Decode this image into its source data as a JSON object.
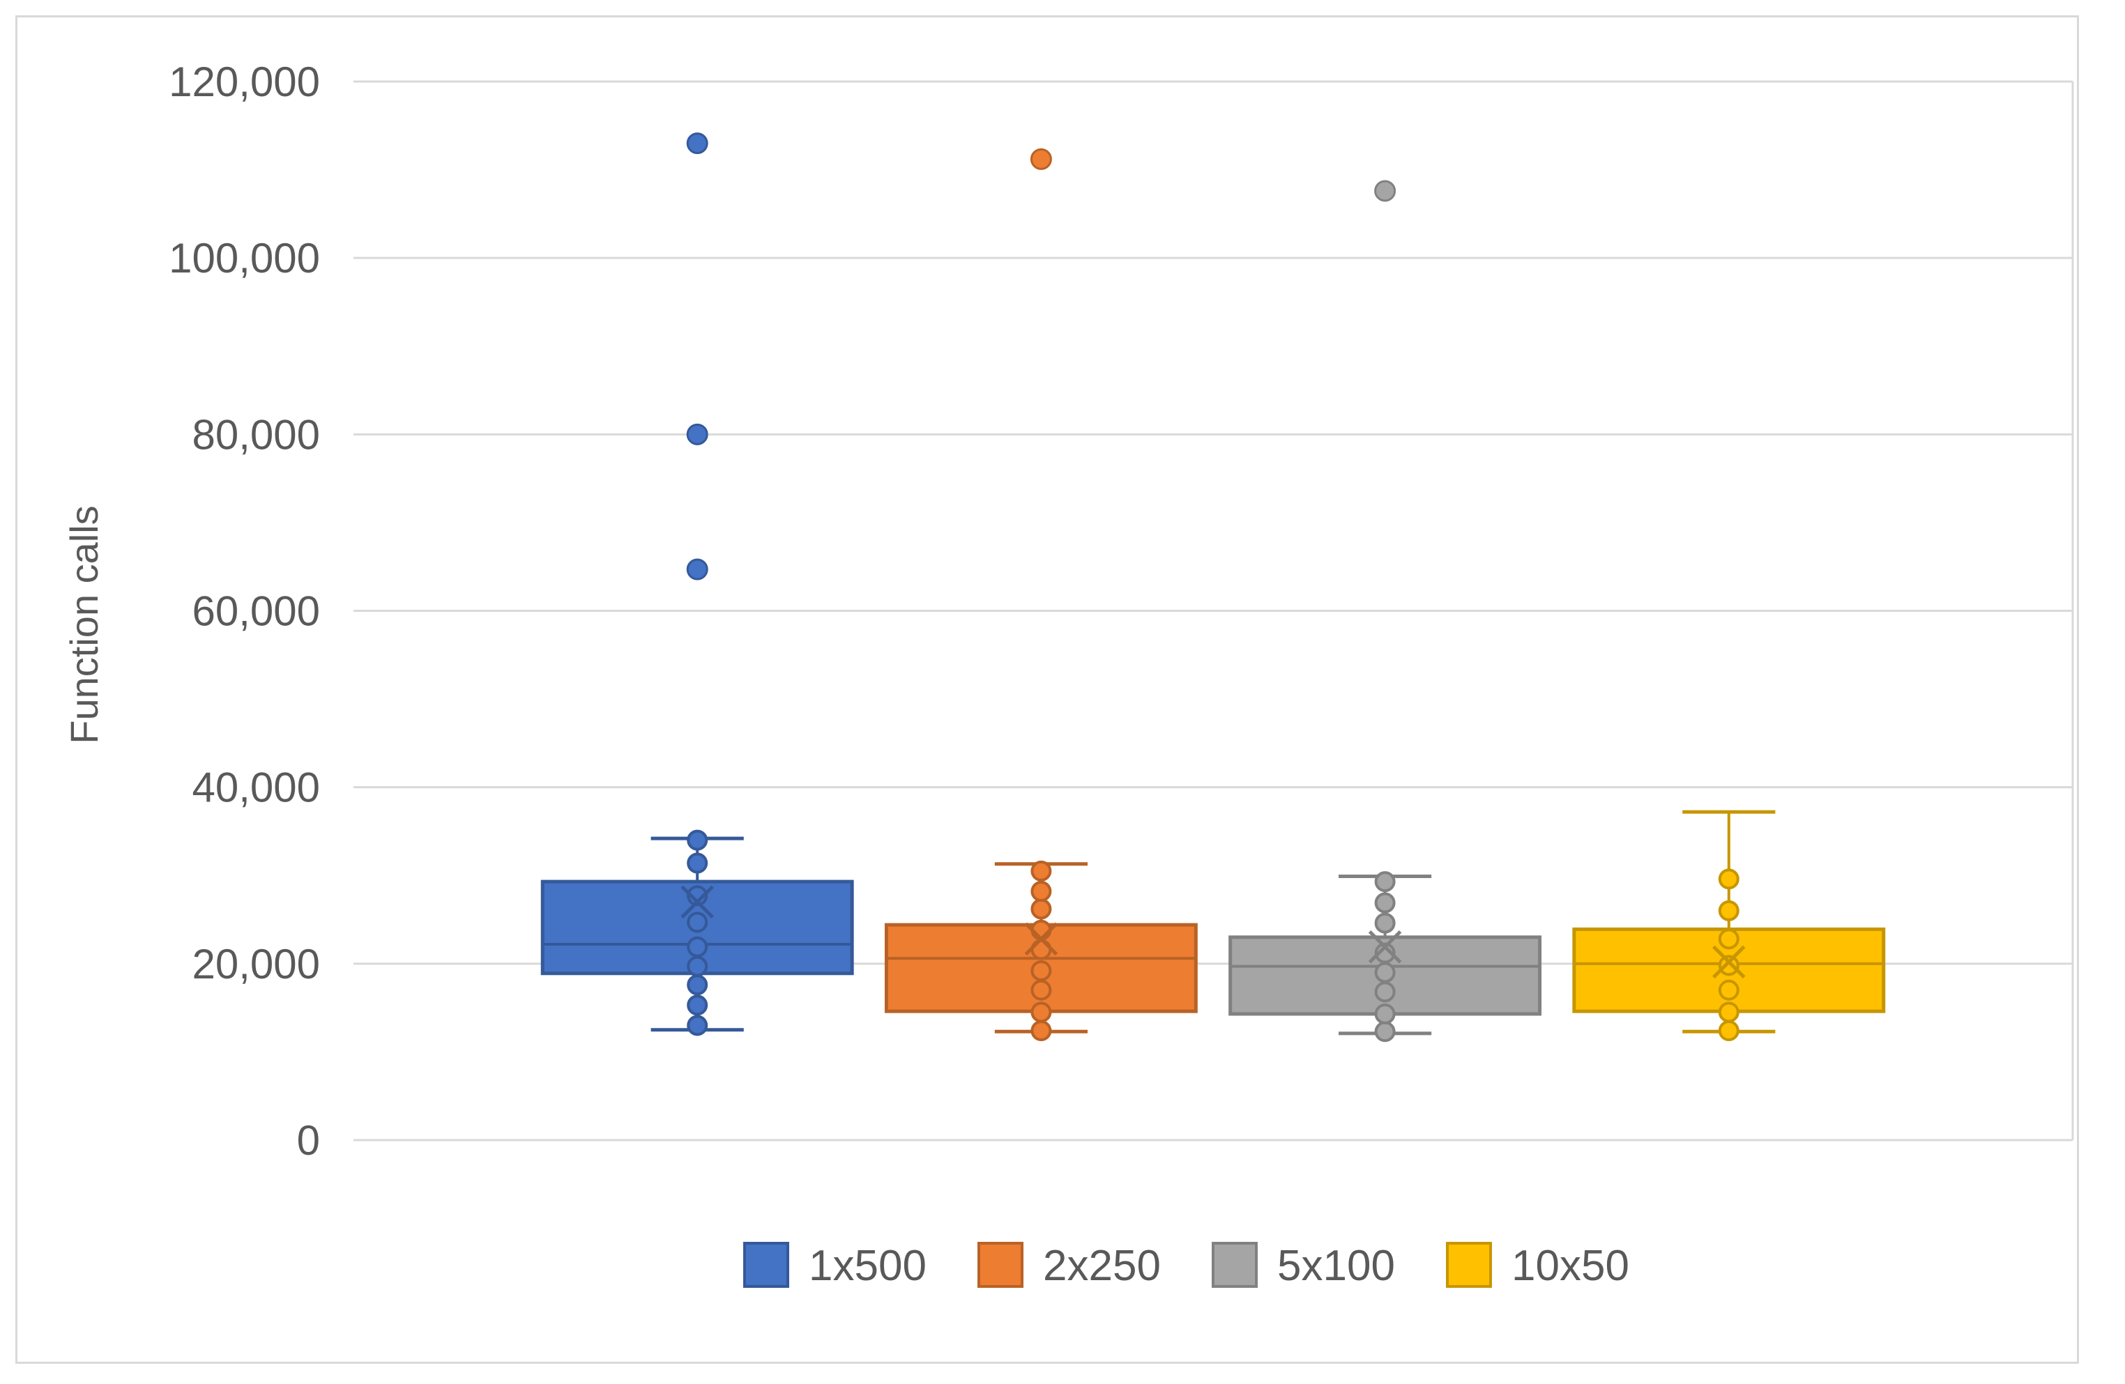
{
  "chart_data": {
    "type": "box",
    "title": "",
    "xlabel": "",
    "ylabel": "Function calls",
    "ylim": [
      0,
      120000
    ],
    "yticks": [
      0,
      20000,
      40000,
      60000,
      80000,
      100000,
      120000
    ],
    "ytick_labels": [
      "0",
      "20,000",
      "40,000",
      "60,000",
      "80,000",
      "100,000",
      "120,000"
    ],
    "grid": true,
    "legend_position": "bottom",
    "series": [
      {
        "name": "1x500",
        "color": "#4472c4",
        "whisker_low": 12500,
        "q1": 18900,
        "median": 22200,
        "q3": 29300,
        "whisker_high": 34200,
        "mean": 27000,
        "points": [
          13000,
          15300,
          17600,
          19700,
          21900,
          24700,
          27700,
          31400,
          34000
        ],
        "outliers": [
          64700,
          80000,
          113000
        ]
      },
      {
        "name": "2x250",
        "color": "#ed7d31",
        "whisker_low": 12300,
        "q1": 14600,
        "median": 20600,
        "q3": 24400,
        "whisker_high": 31300,
        "mean": 22800,
        "points": [
          12400,
          14500,
          17000,
          19200,
          21600,
          23800,
          26200,
          28200,
          30500
        ],
        "outliers": [
          111200
        ]
      },
      {
        "name": "5x100",
        "color": "#a5a5a5",
        "whisker_low": 12100,
        "q1": 14300,
        "median": 19700,
        "q3": 23000,
        "whisker_high": 29900,
        "mean": 21900,
        "points": [
          12300,
          14300,
          16800,
          19000,
          21200,
          24600,
          26900,
          29300
        ],
        "outliers": [
          107600
        ]
      },
      {
        "name": "10x50",
        "color": "#ffc000",
        "whisker_low": 12300,
        "q1": 14600,
        "median": 20000,
        "q3": 23900,
        "whisker_high": 37200,
        "mean": 20200,
        "points": [
          12400,
          14500,
          17000,
          19800,
          22800,
          26000,
          29600
        ],
        "outliers": []
      }
    ]
  }
}
